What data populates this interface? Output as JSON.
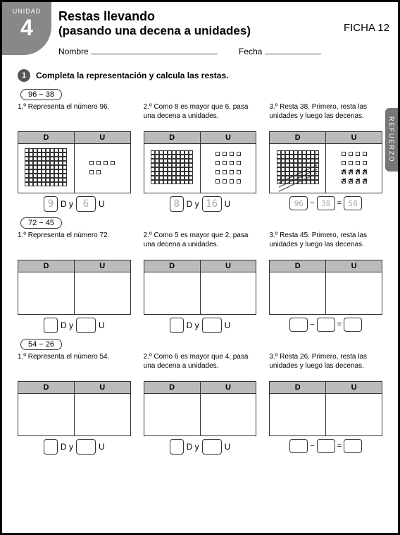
{
  "unit": {
    "label": "UNIDAD",
    "number": "4"
  },
  "title1": "Restas llevando",
  "title2": "(pasando una decena a unidades)",
  "ficha": "FICHA 12",
  "nombre": "Nombre",
  "fecha": "Fecha",
  "side_tab": "REFUERZO",
  "bullet": "1",
  "instruction": "Completa la representación y calcula las restas.",
  "col_headers": {
    "d": "D",
    "u": "U"
  },
  "labels": {
    "dy": "D y",
    "u": "U",
    "minus": "−",
    "equals": "="
  },
  "problems": [
    {
      "expr": "96 − 38",
      "steps": [
        {
          "text": "1.º Representa el número 96.",
          "d_val": "9",
          "u_val": "6",
          "show_viz": true,
          "tens": 9,
          "units": 6
        },
        {
          "text": "2.º Como 8 es mayor que 6, pasa una decena a unidades.",
          "d_val": "8",
          "u_val": "16",
          "show_viz": true,
          "tens": 8,
          "units": 16
        },
        {
          "text": "3.º Resta 38. Primero, resta las unidades y luego las decenas.",
          "show_viz": true,
          "tens": 8,
          "units": 16,
          "cross_tens": 3,
          "cross_units": 8,
          "result": {
            "a": "96",
            "b": "38",
            "c": "58"
          }
        }
      ]
    },
    {
      "expr": "72 − 45",
      "steps": [
        {
          "text": "1.º Representa el número 72.",
          "d_val": "",
          "u_val": "",
          "show_viz": false
        },
        {
          "text": "2.º Como 5 es mayor que 2, pasa una decena a unidades.",
          "d_val": "",
          "u_val": "",
          "show_viz": false
        },
        {
          "text": "3.º Resta 45. Primero, resta las unidades y luego las decenas.",
          "show_viz": false,
          "result": {
            "a": "",
            "b": "",
            "c": ""
          }
        }
      ]
    },
    {
      "expr": "54 − 26",
      "steps": [
        {
          "text": "1.º Representa el número 54.",
          "d_val": "",
          "u_val": "",
          "show_viz": false
        },
        {
          "text": "2.º Como 6 es mayor que 4, pasa una decena a unidades.",
          "d_val": "",
          "u_val": "",
          "show_viz": false
        },
        {
          "text": "3.º Resta 26. Primero, resta las unidades y luego las decenas.",
          "show_viz": false,
          "result": {
            "a": "",
            "b": "",
            "c": ""
          }
        }
      ]
    }
  ]
}
